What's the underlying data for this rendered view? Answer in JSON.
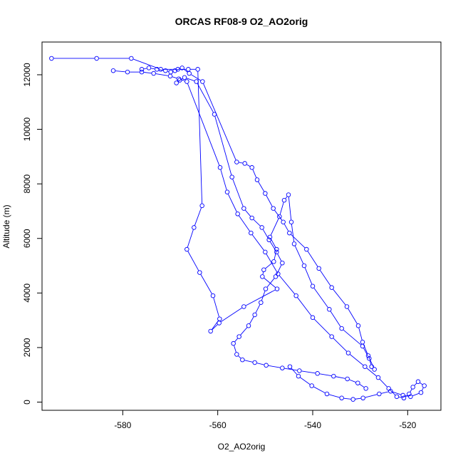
{
  "chart_data": {
    "type": "line",
    "title": "ORCAS RF08-9 O2_AO2orig",
    "xlabel": "O2_AO2orig",
    "ylabel": "Altitude (m)",
    "xlim": [
      -597,
      -513
    ],
    "ylim": [
      -300,
      13200
    ],
    "xticks": [
      -580,
      -560,
      -540,
      -520
    ],
    "yticks": [
      0,
      2000,
      4000,
      6000,
      8000,
      10000,
      12000
    ],
    "grid": false,
    "legend": "none",
    "marker": "open-circle",
    "color": "#0000ff",
    "series": [
      {
        "x": [
          -595.0,
          -585.5,
          -578.2,
          -572.0,
          -568.4,
          -566.2,
          -564.2,
          -563.3,
          -565.0,
          -566.5,
          -563.8,
          -561.0,
          -559.6,
          -561.5,
          -559.7,
          -554.5,
          -547.5,
          -550.6,
          -550.3,
          -548.2,
          -547.6,
          -549.0,
          -547.0,
          -546.0,
          -545.1,
          -544.5,
          -543.9,
          -541.8,
          -540.0,
          -536.5,
          -533.9,
          -529.5,
          -528.1,
          -527.6
        ],
        "y": [
          12600,
          12600,
          12600,
          12200,
          12200,
          12200,
          12200,
          7200,
          6400,
          5600,
          4750,
          3900,
          3050,
          2600,
          2900,
          3500,
          4150,
          4600,
          4850,
          5150,
          5600,
          6050,
          6800,
          7400,
          7600,
          6600,
          5800,
          5000,
          4250,
          3400,
          2700,
          2050,
          1600,
          1300
        ]
      },
      {
        "x": [
          -582.0,
          -579.0,
          -576.0,
          -573.5,
          -570.0,
          -568.2,
          -566.5,
          -559.5,
          -558.0,
          -555.8,
          -553.0,
          -550.0,
          -547.3,
          -543.5,
          -540.0,
          -536.0,
          -532.5,
          -529.0,
          -526.2,
          -524.0,
          -522.3,
          -520.8,
          -519.7,
          -518.9,
          -517.8,
          -516.5,
          -517.2,
          -519.4,
          -521.0,
          -523.6,
          -526.0,
          -529.4,
          -531.5,
          -533.9,
          -537.0,
          -540.2,
          -543.0,
          -544.8
        ],
        "y": [
          12150,
          12100,
          12100,
          12050,
          11950,
          11850,
          11750,
          8600,
          7700,
          6900,
          6200,
          5500,
          4700,
          3900,
          3100,
          2400,
          1800,
          1300,
          900,
          500,
          200,
          150,
          300,
          550,
          750,
          600,
          350,
          200,
          250,
          400,
          300,
          150,
          100,
          150,
          300,
          600,
          950,
          1300
        ]
      },
      {
        "x": [
          -576.0,
          -574.5,
          -572.8,
          -571.0,
          -569.9,
          -569.0,
          -567.5,
          -566.0,
          -563.2,
          -556.0,
          -554.3,
          -552.8,
          -551.7,
          -550.0,
          -548.3,
          -546.2,
          -544.9,
          -541.3,
          -538.7,
          -536.0,
          -532.8,
          -530.4,
          -529.5,
          -528.3,
          -527.0
        ],
        "y": [
          12200,
          12250,
          12200,
          12150,
          12100,
          12150,
          12250,
          12050,
          11750,
          8800,
          8750,
          8600,
          8150,
          7650,
          7100,
          6600,
          6200,
          5600,
          4900,
          4200,
          3500,
          2800,
          2200,
          1700,
          1200
        ]
      },
      {
        "x": [
          -568.7,
          -568.0,
          -567.0,
          -564.5,
          -560.7,
          -557.0,
          -554.5,
          -552.8,
          -550.7,
          -549.2,
          -547.6,
          -546.4,
          -547.8,
          -549.9,
          -550.9,
          -552.2,
          -553.5,
          -555.5,
          -556.7,
          -556.0,
          -554.8,
          -552.2,
          -549.8,
          -546.4,
          -542.8,
          -539.0,
          -535.6,
          -532.7,
          -530.5,
          -528.8
        ],
        "y": [
          11700,
          11800,
          11900,
          11750,
          10550,
          8250,
          7100,
          6750,
          6400,
          5950,
          5500,
          5100,
          4600,
          4150,
          3650,
          3200,
          2800,
          2400,
          2150,
          1750,
          1550,
          1450,
          1350,
          1250,
          1150,
          1050,
          950,
          850,
          700,
          500
        ]
      }
    ]
  }
}
